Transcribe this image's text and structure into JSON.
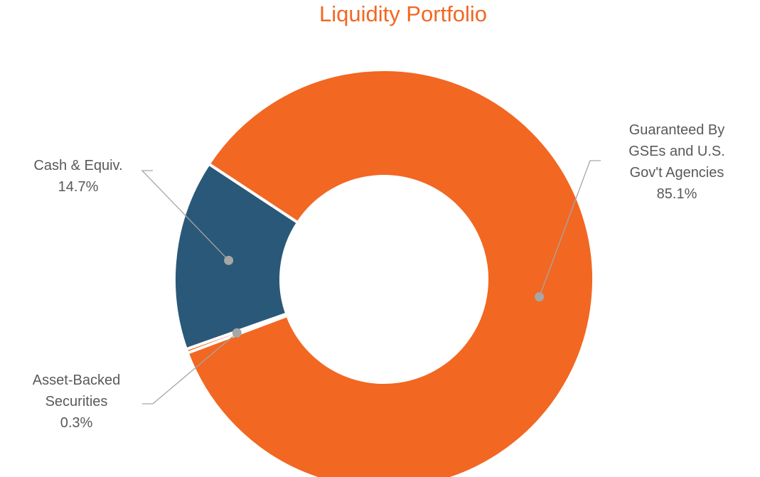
{
  "chart_data": {
    "type": "donut",
    "title": "Liquidity Portfolio",
    "categories": [
      "Guaranteed By GSEs and U.S. Gov't Agencies",
      "Asset-Backed Securities",
      "Cash & Equiv."
    ],
    "values": [
      85.1,
      0.3,
      14.7
    ],
    "value_labels": [
      "85.1%",
      "0.3%",
      "14.7%"
    ],
    "colors": [
      "#f26722",
      "#f26722",
      "#2a5878"
    ]
  }
}
